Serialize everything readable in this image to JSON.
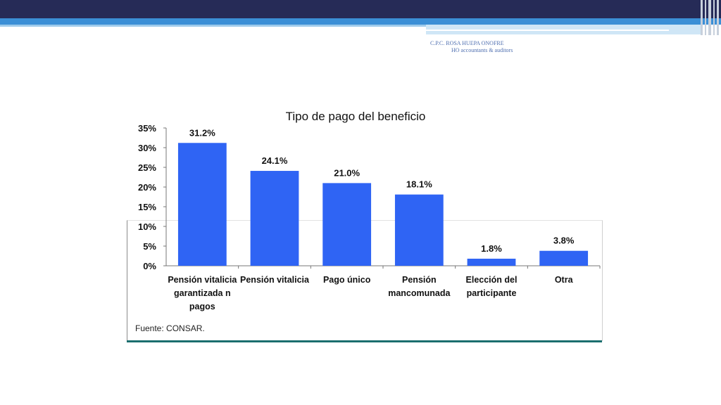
{
  "author": {
    "line1": "C.P.C. ROSA HUEPA ONOFRE",
    "line2": "HO accountants & auditors"
  },
  "colors": {
    "bar": "#2f64f4",
    "header": "#262b57",
    "accent": "#3b8fd6",
    "frame_bottom": "#1b6e6e"
  },
  "source": "Fuente: CONSAR.",
  "chart_data": {
    "type": "bar",
    "title": "Tipo de pago del beneficio",
    "categories": [
      [
        "Pensión vitalicia",
        "garantizada n",
        "pagos"
      ],
      [
        "Pensión vitalicia"
      ],
      [
        "Pago único"
      ],
      [
        "Pensión",
        "mancomunada"
      ],
      [
        "Elección del",
        "participante"
      ],
      [
        "Otra"
      ]
    ],
    "values": [
      31.2,
      24.1,
      21.0,
      18.1,
      1.8,
      3.8
    ],
    "value_labels": [
      "31.2%",
      "24.1%",
      "21.0%",
      "18.1%",
      "1.8%",
      "3.8%"
    ],
    "ylim": [
      0,
      35
    ],
    "yticks": [
      "0%",
      "5%",
      "10%",
      "15%",
      "20%",
      "25%",
      "30%",
      "35%"
    ],
    "grid": false,
    "legend": "none"
  }
}
